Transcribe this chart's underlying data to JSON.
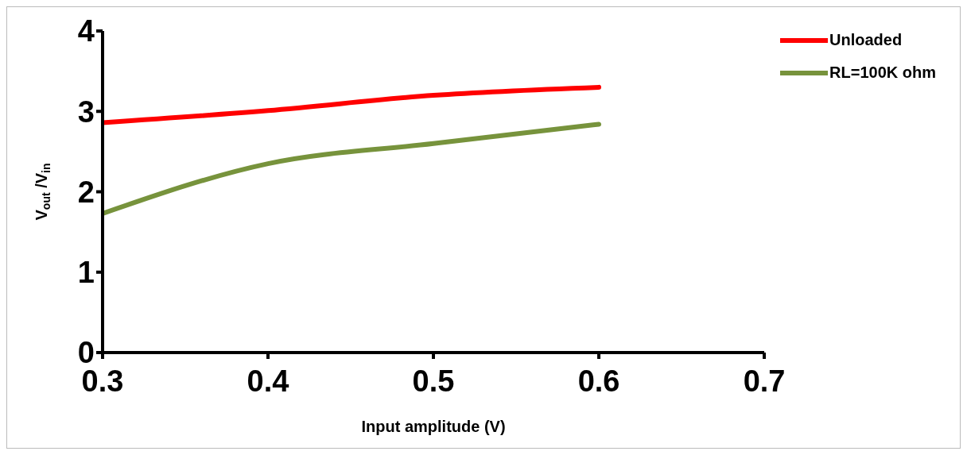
{
  "chart_data": {
    "type": "line",
    "xlabel": "Input  amplitude (V)",
    "ylabel": "V$_{out}$ /V$_{in}$",
    "x": [
      0.3,
      0.4,
      0.5,
      0.6
    ],
    "series": [
      {
        "name": "Unloaded",
        "color": "#ff0000",
        "values": [
          2.86,
          3.01,
          3.2,
          3.3
        ]
      },
      {
        "name": "RL=100K ohm",
        "color": "#77933c",
        "values": [
          1.73,
          2.35,
          2.6,
          2.84
        ]
      }
    ],
    "xlim": [
      0.3,
      0.7
    ],
    "xticks": [
      0.3,
      0.4,
      0.5,
      0.6,
      0.7
    ],
    "ylim": [
      0,
      4
    ],
    "yticks": [
      0,
      1,
      2,
      3,
      4
    ],
    "grid": false,
    "legend": "top right",
    "marker": "none",
    "line_style": "solid"
  }
}
